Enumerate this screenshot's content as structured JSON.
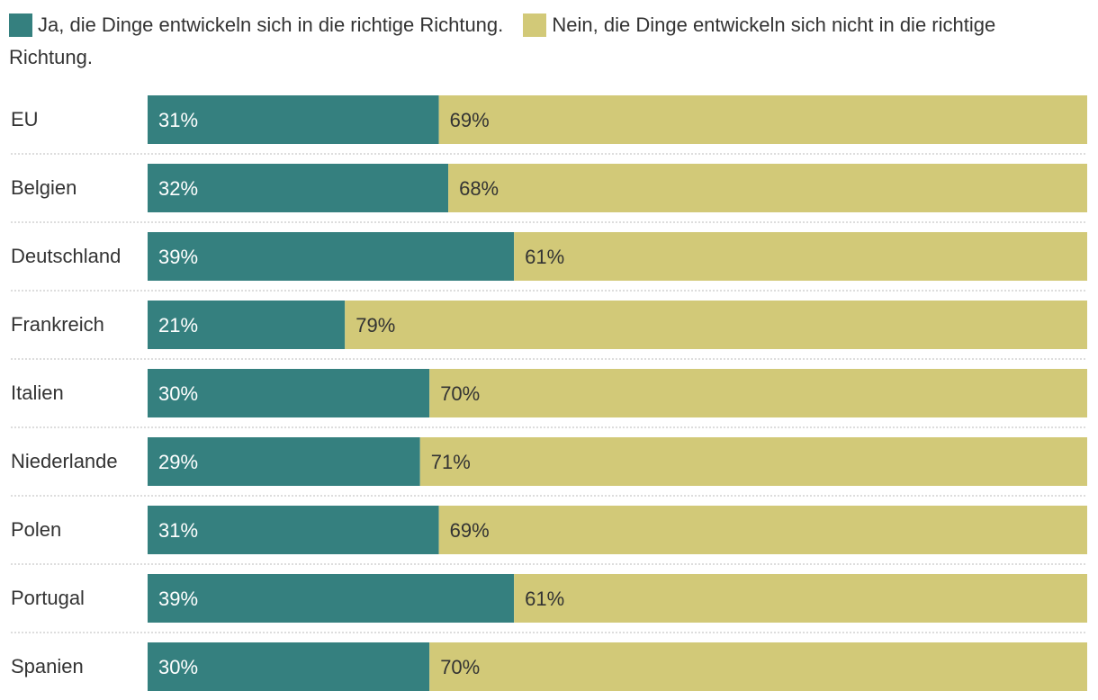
{
  "legend": {
    "yes_label": "Ja, die Dinge entwickeln sich in die richtige Richtung.",
    "no_label": "Nein, die Dinge entwickeln sich nicht in die richtige Richtung."
  },
  "colors": {
    "yes": "#35807f",
    "no": "#d2c978",
    "yes_text": "#ffffff",
    "no_text": "#333333",
    "separator": "#bbbbbb"
  },
  "chart_data": {
    "type": "bar",
    "orientation": "horizontal",
    "stacked": true,
    "categories": [
      "EU",
      "Belgien",
      "Deutschland",
      "Frankreich",
      "Italien",
      "Niederlande",
      "Polen",
      "Portugal",
      "Spanien"
    ],
    "series": [
      {
        "name": "Ja, die Dinge entwickeln sich in die richtige Richtung.",
        "values": [
          31,
          32,
          39,
          21,
          30,
          29,
          31,
          39,
          30
        ]
      },
      {
        "name": "Nein, die Dinge entwickeln sich nicht in die richtige Richtung.",
        "values": [
          69,
          68,
          61,
          79,
          70,
          71,
          69,
          61,
          70
        ]
      }
    ],
    "value_suffix": "%",
    "xlim": [
      0,
      100
    ],
    "legend_position": "top"
  }
}
